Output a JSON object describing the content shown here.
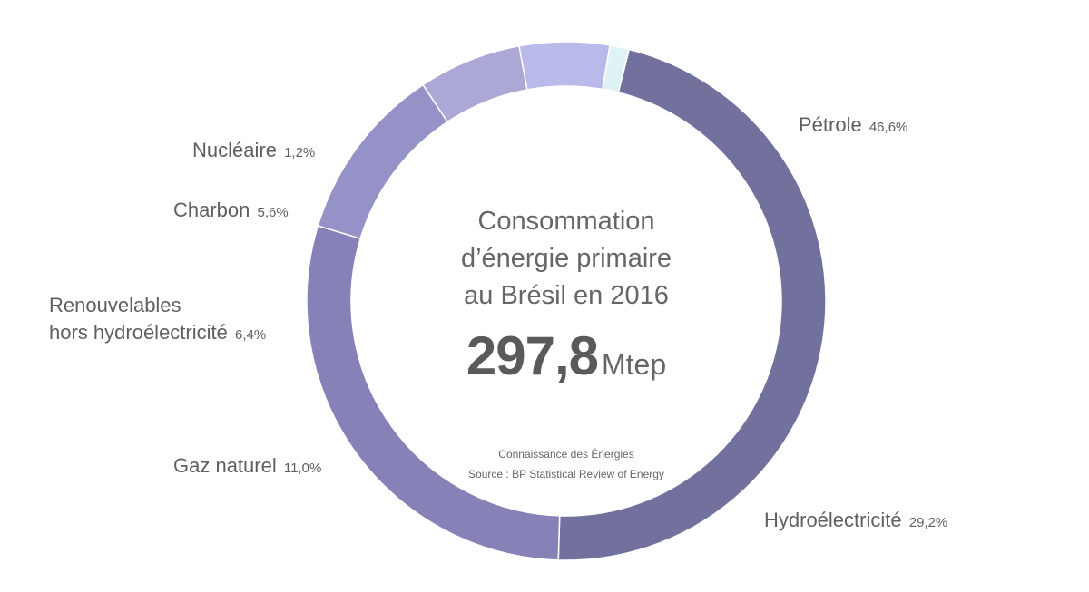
{
  "chart_data": {
    "type": "pie",
    "donut": true,
    "title": [
      "Consommation",
      "d’énergie primaire",
      "au Brésil en 2016"
    ],
    "total": {
      "value": "297,8",
      "unit": "Mtep"
    },
    "slices": [
      {
        "name": "Pétrole",
        "value": 46.6,
        "label": "46,6%",
        "color": "#72719e"
      },
      {
        "name": "Hydroélectricité",
        "value": 29.2,
        "label": "29,2%",
        "color": "#8682b8"
      },
      {
        "name": "Gaz naturel",
        "value": 11.0,
        "label": "11,0%",
        "color": "#9592c8"
      },
      {
        "name": "Renouvelables hors hydroélectricité",
        "name_lines": [
          "Renouvelables",
          "hors hydroélectricité"
        ],
        "value": 6.4,
        "label": "6,4%",
        "color": "#aba8d6"
      },
      {
        "name": "Charbon",
        "value": 5.6,
        "label": "5,6%",
        "color": "#babaea"
      },
      {
        "name": "Nucléaire",
        "value": 1.2,
        "label": "1,2%",
        "color": "#dff3f6"
      }
    ],
    "credits": [
      "Connaissance des Énergies",
      "Source : BP Statistical Review of Energy"
    ]
  }
}
